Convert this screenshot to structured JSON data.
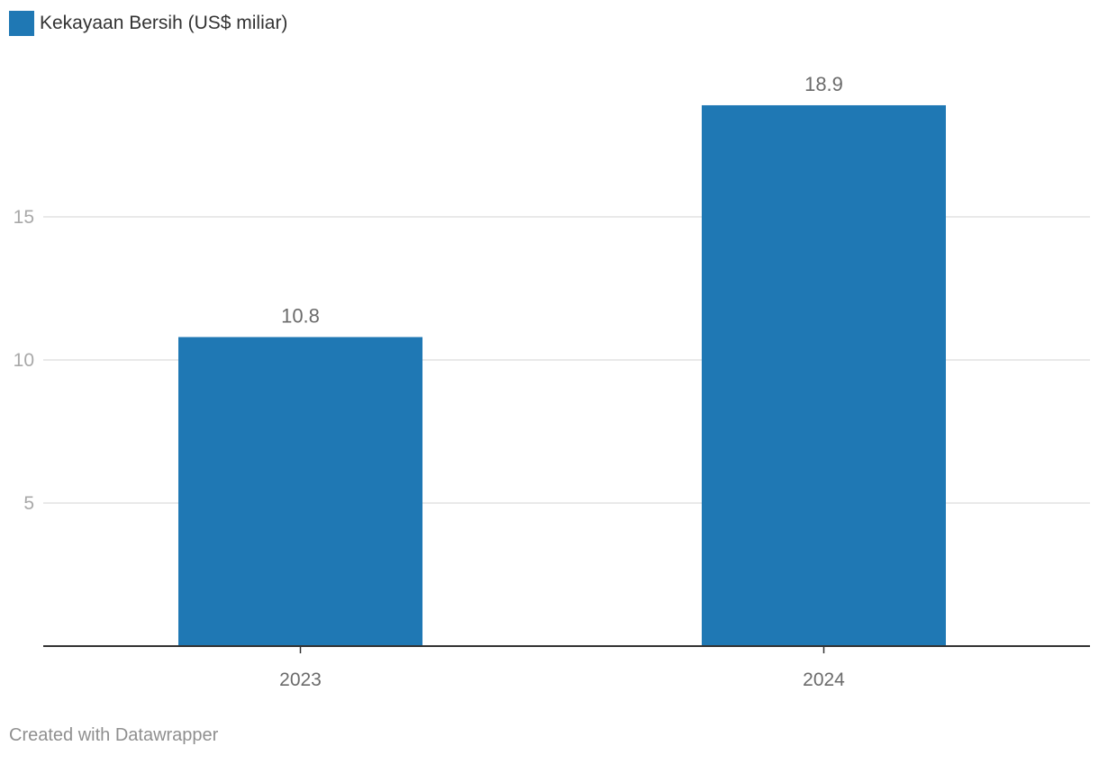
{
  "colors": {
    "bar": "#1f78b4",
    "grid": "#e2e2e2",
    "axis": "#333333",
    "tick_text": "#a8a8a8",
    "category_text": "#6b6b6b",
    "value_text": "#6b6b6b"
  },
  "legend": {
    "label": "Kekayaan Bersih (US$ miliar)"
  },
  "footer": {
    "credit": "Created with Datawrapper"
  },
  "chart_data": {
    "type": "bar",
    "title": "",
    "xlabel": "",
    "ylabel": "",
    "categories": [
      "2023",
      "2024"
    ],
    "series": [
      {
        "name": "Kekayaan Bersih (US$ miliar)",
        "values": [
          10.8,
          18.9
        ]
      }
    ],
    "data_labels": [
      "10.8",
      "18.9"
    ],
    "ylim": [
      0,
      20
    ],
    "yticks": [
      5,
      10,
      15
    ],
    "ytick_labels": [
      "5",
      "10",
      "15"
    ],
    "grid": true,
    "legend_position": "top-left"
  }
}
